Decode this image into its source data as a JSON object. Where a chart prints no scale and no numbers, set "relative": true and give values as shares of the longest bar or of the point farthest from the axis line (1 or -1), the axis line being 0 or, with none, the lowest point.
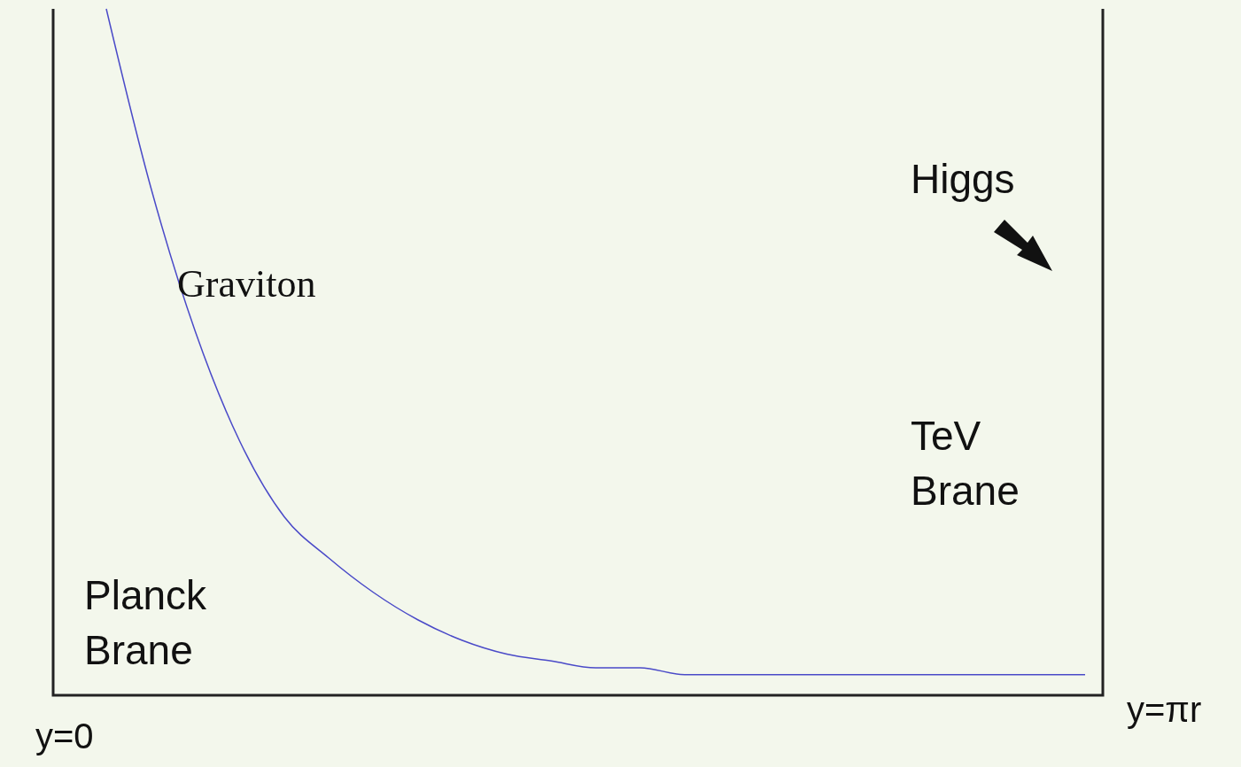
{
  "chart_data": {
    "type": "line",
    "relative": true,
    "color": "#4a4ac8",
    "categories": [
      null,
      null,
      null,
      null,
      null,
      null,
      null,
      null,
      null,
      null,
      null,
      null,
      null,
      null,
      null,
      null,
      null,
      null,
      null,
      null,
      null,
      null,
      null
    ],
    "values": [
      1,
      0.74,
      0.53,
      0.37,
      0.26,
      0.2,
      0.15,
      0.11,
      0.08,
      0.06,
      0.05,
      0.04,
      0.04,
      0.03,
      0.03,
      0.03,
      0.03,
      0.03,
      0.03,
      0.03,
      0.03,
      0.03,
      0.03
    ],
    "annotations": [
      "Graviton",
      "Higgs",
      "TeV Brane",
      "Planck Brane",
      "y=0",
      "y=πr"
    ]
  }
}
